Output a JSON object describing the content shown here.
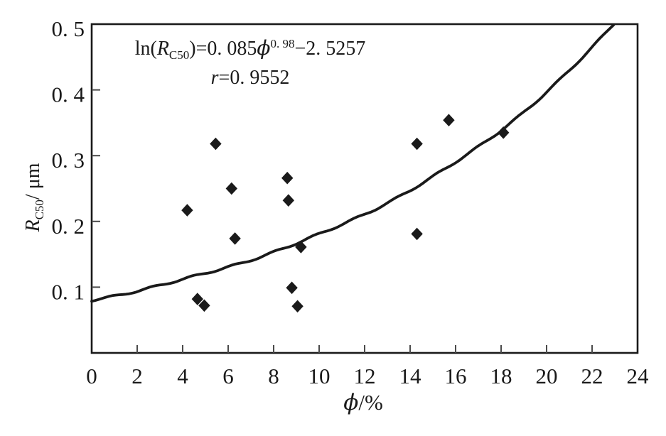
{
  "chart_data": {
    "type": "scatter",
    "title": "",
    "xlabel_phi": "ϕ",
    "xlabel_unit": "/%",
    "ylabel_var": "R",
    "ylabel_sub": "C50",
    "ylabel_unit": "/ μm",
    "xlim": [
      0,
      24
    ],
    "ylim": [
      0,
      0.5
    ],
    "grid": false,
    "legend": null,
    "xticks": [
      0,
      2,
      4,
      6,
      8,
      10,
      12,
      14,
      16,
      18,
      20,
      22,
      24
    ],
    "xtick_labels": [
      "0",
      "2",
      "4",
      "6",
      "8",
      "10",
      "12",
      "14",
      "16",
      "18",
      "20",
      "22",
      "24"
    ],
    "ytick_values": [
      0.1,
      0.2,
      0.3,
      0.4,
      0.5
    ],
    "ytick_labels": [
      "0. 1",
      "0. 2",
      "0. 3",
      "0. 4",
      "0. 5"
    ],
    "points": [
      [
        4.2,
        0.217
      ],
      [
        4.65,
        0.082
      ],
      [
        4.95,
        0.072
      ],
      [
        5.45,
        0.318
      ],
      [
        6.15,
        0.25
      ],
      [
        6.3,
        0.174
      ],
      [
        8.6,
        0.266
      ],
      [
        8.65,
        0.232
      ],
      [
        8.8,
        0.099
      ],
      [
        9.05,
        0.071
      ],
      [
        9.2,
        0.161
      ],
      [
        14.3,
        0.318
      ],
      [
        14.3,
        0.181
      ],
      [
        15.7,
        0.354
      ],
      [
        18.1,
        0.335
      ]
    ],
    "fit_curve": {
      "model": "ln(RC50) = a*phi^b + c",
      "a": 0.085,
      "b": 0.98,
      "c": -2.5257,
      "x_start": 0,
      "x_end": 22.95
    },
    "annotation": {
      "line1": {
        "ln": "ln(",
        "var": "R",
        "sub": "C50",
        "eq": ")=0. 085",
        "phi": "ϕ",
        "exp": "0. 98",
        "tail": "−2. 5257"
      },
      "line2": {
        "var": "r",
        "val": "=0. 9552"
      }
    },
    "colors": {
      "ink": "#1a1a1a",
      "tick": "#4a4a4a",
      "background": "#ffffff"
    }
  }
}
